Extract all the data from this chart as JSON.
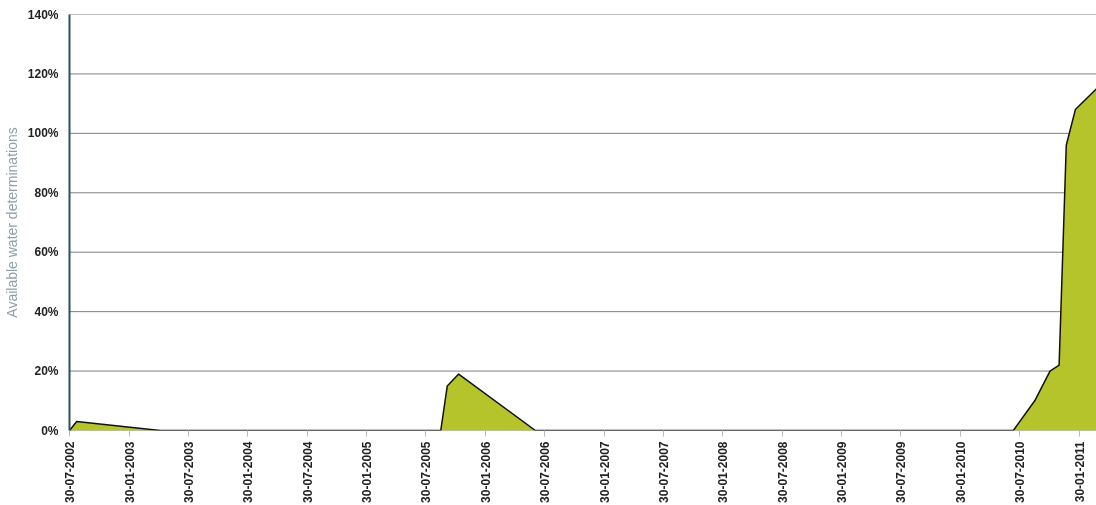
{
  "chart_data": {
    "type": "area",
    "ylabel": "Available water determinations",
    "series": [
      {
        "color": "#b5c42a",
        "x": [
          "2002-07-30",
          "2002-08-21",
          "2003-05-05",
          "2005-09-14",
          "2005-10-04",
          "2005-11-08",
          "2006-07-02",
          "2010-07-11",
          "2010-09-15",
          "2010-11-01",
          "2010-11-29",
          "2010-12-21",
          "2011-01-18",
          "2011-03-24"
        ],
        "values": [
          0,
          3,
          0,
          0,
          15,
          19,
          0,
          0,
          10,
          20,
          22,
          96,
          108,
          115
        ]
      }
    ],
    "xlim": [
      "2002-07-30",
      "2011-03-24"
    ],
    "xticks": [
      {
        "value": "2002-07-30",
        "label": "30-07-2002"
      },
      {
        "value": "2003-01-30",
        "label": "30-01-2003"
      },
      {
        "value": "2003-07-30",
        "label": "30-07-2003"
      },
      {
        "value": "2004-01-30",
        "label": "30-01-2004"
      },
      {
        "value": "2004-07-30",
        "label": "30-07-2004"
      },
      {
        "value": "2005-01-30",
        "label": "30-01-2005"
      },
      {
        "value": "2005-07-30",
        "label": "30-07-2005"
      },
      {
        "value": "2006-01-30",
        "label": "30-01-2006"
      },
      {
        "value": "2006-07-30",
        "label": "30-07-2006"
      },
      {
        "value": "2007-01-30",
        "label": "30-01-2007"
      },
      {
        "value": "2007-07-30",
        "label": "30-07-2007"
      },
      {
        "value": "2008-01-30",
        "label": "30-01-2008"
      },
      {
        "value": "2008-07-30",
        "label": "30-07-2008"
      },
      {
        "value": "2009-01-30",
        "label": "30-01-2009"
      },
      {
        "value": "2009-07-30",
        "label": "30-07-2009"
      },
      {
        "value": "2010-01-30",
        "label": "30-01-2010"
      },
      {
        "value": "2010-07-30",
        "label": "30-07-2010"
      },
      {
        "value": "2011-01-30",
        "label": "30-01-2011"
      }
    ],
    "ylim": [
      0,
      140
    ],
    "yticks": [
      {
        "value": 0,
        "label": "0%"
      },
      {
        "value": 20,
        "label": "20%"
      },
      {
        "value": 40,
        "label": "40%"
      },
      {
        "value": 60,
        "label": "60%"
      },
      {
        "value": 80,
        "label": "80%"
      },
      {
        "value": 100,
        "label": "100%"
      },
      {
        "value": 120,
        "label": "120%"
      },
      {
        "value": 140,
        "label": "140%"
      }
    ],
    "grid": "y"
  }
}
